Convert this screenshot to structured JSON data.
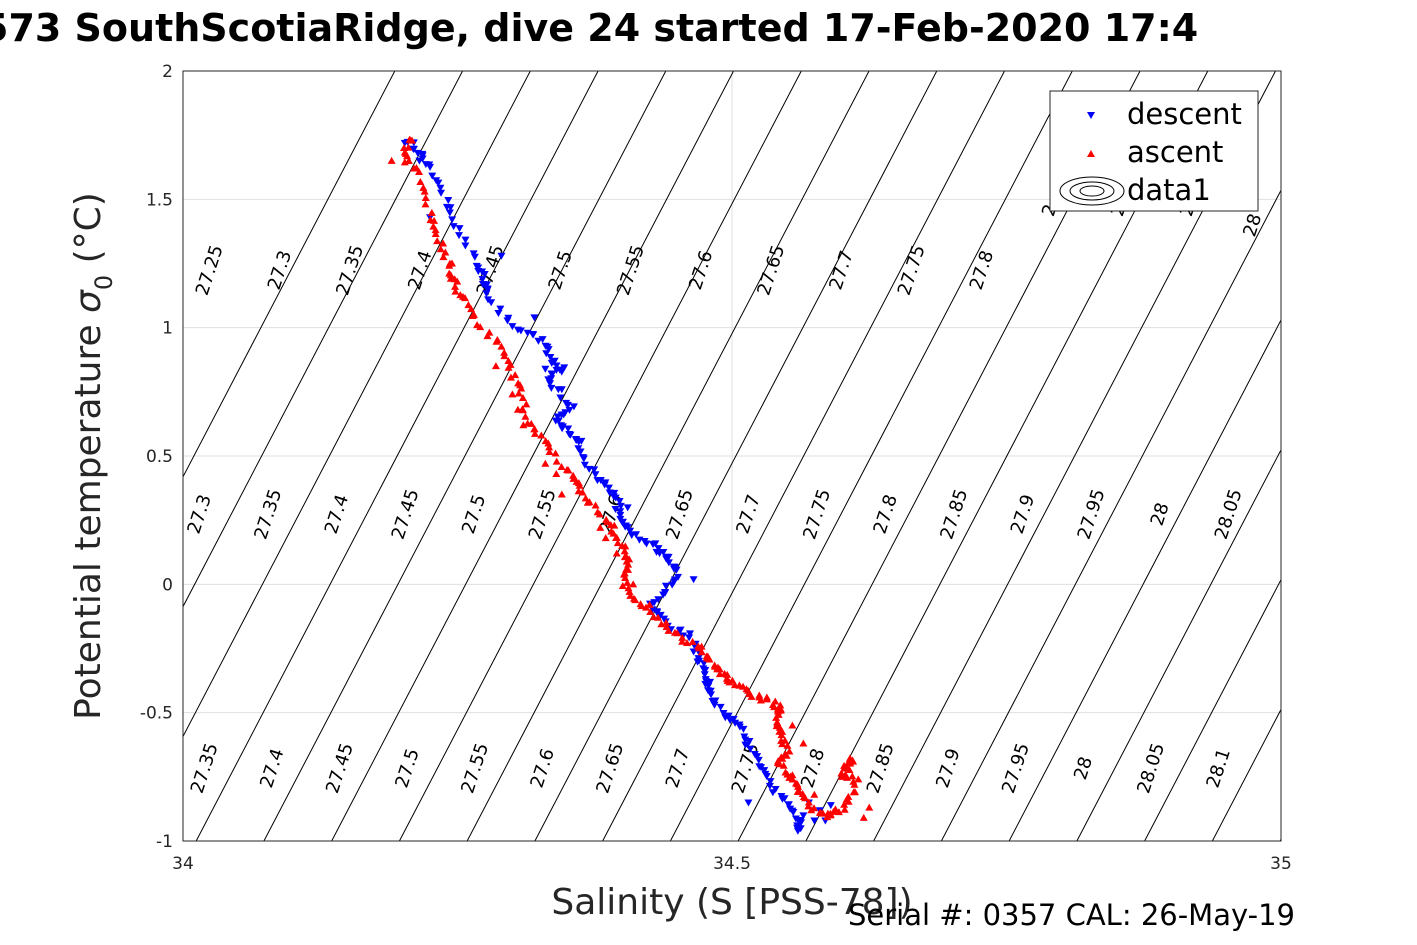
{
  "title": "573 SouthScotiaRidge, dive 24 started 17-Feb-2020 17:4",
  "footer": "Serial #: 0357  CAL: 26-May-19",
  "chart_data": {
    "type": "scatter",
    "xlabel": "Salinity (S [PSS-78])",
    "ylabel_main": "Potential temperature ",
    "ylabel_sym": "σ",
    "ylabel_sub": "0",
    "ylabel_unit": " (°C)",
    "xlim": [
      34,
      35
    ],
    "ylim": [
      -1,
      2
    ],
    "xticks": [
      "34",
      "34.5",
      "35"
    ],
    "yticks": [
      "-1",
      "-0.5",
      "0",
      "0.5",
      "1",
      "1.5",
      "2"
    ],
    "grid": true,
    "legend_position": "top-right",
    "legend": [
      "descent",
      "ascent",
      "data1"
    ],
    "colors": {
      "descent": "#0000ff",
      "ascent": "#ff0000",
      "contour": "#000000"
    },
    "contour_labels": {
      "top": [
        "27.25",
        "27.3",
        "27.35",
        "27.4",
        "27.45",
        "27.5",
        "27.55",
        "27.6",
        "27.65",
        "27.7",
        "27.75",
        "27.8",
        "2",
        "2",
        "2",
        "28"
      ],
      "middle": [
        "27.3",
        "27.35",
        "27.4",
        "27.45",
        "27.5",
        "27.55",
        "27.6",
        "27.65",
        "27.7",
        "27.75",
        "27.8",
        "27.85",
        "27.9",
        "27.95",
        "28",
        "28.05"
      ],
      "bottom": [
        "27.35",
        "27.4",
        "27.45",
        "27.5",
        "27.55",
        "27.6",
        "27.65",
        "27.7",
        "27.75",
        "27.8",
        "27.85",
        "27.9",
        "27.95",
        "28",
        "28.05",
        "28.1"
      ]
    },
    "series": [
      {
        "name": "descent",
        "marker": "triangle-down",
        "path": [
          [
            34.205,
            1.73
          ],
          [
            34.215,
            1.68
          ],
          [
            34.225,
            1.62
          ],
          [
            34.24,
            1.5
          ],
          [
            34.25,
            1.38
          ],
          [
            34.27,
            1.25
          ],
          [
            34.275,
            1.18
          ],
          [
            34.28,
            1.12
          ],
          [
            34.3,
            1.0
          ],
          [
            34.325,
            0.96
          ],
          [
            34.335,
            0.88
          ],
          [
            34.345,
            0.84
          ],
          [
            34.33,
            0.8
          ],
          [
            34.355,
            0.7
          ],
          [
            34.34,
            0.65
          ],
          [
            34.35,
            0.6
          ],
          [
            34.36,
            0.55
          ],
          [
            34.37,
            0.45
          ],
          [
            34.385,
            0.38
          ],
          [
            34.395,
            0.32
          ],
          [
            34.4,
            0.25
          ],
          [
            34.41,
            0.2
          ],
          [
            34.43,
            0.15
          ],
          [
            34.44,
            0.1
          ],
          [
            34.45,
            0.05
          ],
          [
            34.44,
            -0.02
          ],
          [
            34.425,
            -0.08
          ],
          [
            34.44,
            -0.15
          ],
          [
            34.46,
            -0.2
          ],
          [
            34.47,
            -0.28
          ],
          [
            34.475,
            -0.35
          ],
          [
            34.48,
            -0.42
          ],
          [
            34.49,
            -0.5
          ],
          [
            34.505,
            -0.55
          ],
          [
            34.515,
            -0.62
          ],
          [
            34.525,
            -0.7
          ],
          [
            34.535,
            -0.78
          ],
          [
            34.55,
            -0.85
          ],
          [
            34.56,
            -0.92
          ],
          [
            34.56,
            -0.96
          ]
        ],
        "scatter": [
          [
            34.225,
            1.43
          ],
          [
            34.29,
            1.28
          ],
          [
            34.32,
            1.04
          ],
          [
            34.33,
            0.84
          ],
          [
            34.345,
            0.76
          ],
          [
            34.405,
            0.3
          ],
          [
            34.465,
            0.02
          ],
          [
            34.48,
            -0.38
          ],
          [
            34.515,
            -0.85
          ],
          [
            34.565,
            -0.9
          ],
          [
            34.575,
            -0.92
          ],
          [
            34.57,
            -0.85
          ],
          [
            34.58,
            -0.88
          ],
          [
            34.585,
            -0.92
          ],
          [
            34.59,
            -0.86
          ]
        ]
      },
      {
        "name": "ascent",
        "marker": "triangle-up",
        "path": [
          [
            34.21,
            1.74
          ],
          [
            34.2,
            1.68
          ],
          [
            34.215,
            1.6
          ],
          [
            34.225,
            1.45
          ],
          [
            34.235,
            1.32
          ],
          [
            34.245,
            1.22
          ],
          [
            34.25,
            1.15
          ],
          [
            34.27,
            1.02
          ],
          [
            34.29,
            0.92
          ],
          [
            34.3,
            0.82
          ],
          [
            34.31,
            0.72
          ],
          [
            34.315,
            0.62
          ],
          [
            34.33,
            0.55
          ],
          [
            34.35,
            0.45
          ],
          [
            34.36,
            0.38
          ],
          [
            34.375,
            0.3
          ],
          [
            34.39,
            0.22
          ],
          [
            34.4,
            0.15
          ],
          [
            34.405,
            0.08
          ],
          [
            34.4,
            0.02
          ],
          [
            34.41,
            -0.05
          ],
          [
            34.43,
            -0.12
          ],
          [
            34.45,
            -0.2
          ],
          [
            34.47,
            -0.25
          ],
          [
            34.48,
            -0.3
          ],
          [
            34.49,
            -0.34
          ],
          [
            34.5,
            -0.38
          ],
          [
            34.515,
            -0.42
          ],
          [
            34.53,
            -0.45
          ],
          [
            34.545,
            -0.48
          ],
          [
            34.54,
            -0.52
          ],
          [
            34.545,
            -0.58
          ],
          [
            34.55,
            -0.65
          ],
          [
            34.54,
            -0.7
          ],
          [
            34.555,
            -0.75
          ],
          [
            34.56,
            -0.8
          ],
          [
            34.57,
            -0.86
          ],
          [
            34.585,
            -0.9
          ],
          [
            34.6,
            -0.88
          ],
          [
            34.61,
            -0.8
          ],
          [
            34.605,
            -0.72
          ],
          [
            34.61,
            -0.68
          ],
          [
            34.6,
            -0.75
          ]
        ],
        "scatter": [
          [
            34.19,
            1.65
          ],
          [
            34.23,
            1.38
          ],
          [
            34.245,
            1.25
          ],
          [
            34.255,
            1.12
          ],
          [
            34.265,
            1.05
          ],
          [
            34.285,
            0.85
          ],
          [
            34.3,
            0.74
          ],
          [
            34.305,
            0.68
          ],
          [
            34.31,
            0.62
          ],
          [
            34.33,
            0.47
          ],
          [
            34.34,
            0.43
          ],
          [
            34.345,
            0.35
          ],
          [
            34.38,
            0.22
          ],
          [
            34.385,
            0.18
          ],
          [
            34.395,
            0.12
          ],
          [
            34.41,
            0.0
          ],
          [
            34.425,
            -0.08
          ],
          [
            34.44,
            -0.15
          ],
          [
            34.555,
            -0.55
          ],
          [
            34.565,
            -0.62
          ],
          [
            34.575,
            -0.82
          ],
          [
            34.59,
            -0.9
          ],
          [
            34.62,
            -0.91
          ],
          [
            34.625,
            -0.87
          ],
          [
            34.615,
            -0.76
          ]
        ]
      }
    ]
  }
}
